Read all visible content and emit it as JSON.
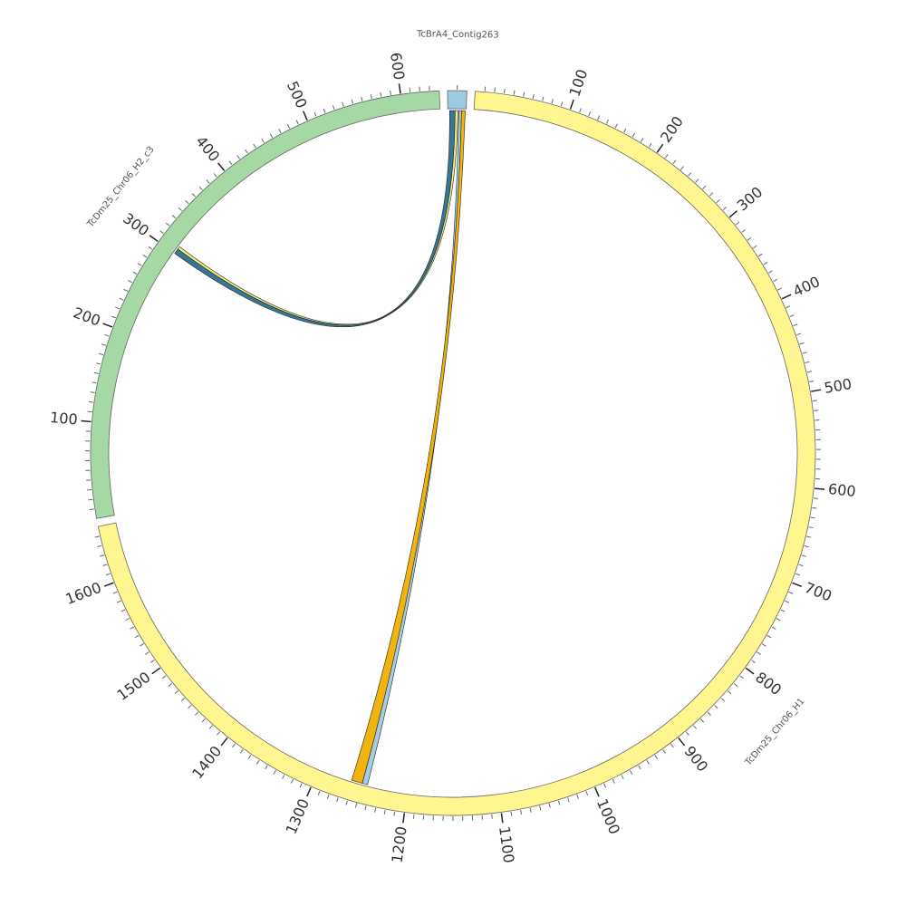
{
  "chart_data": {
    "type": "chord",
    "segments": [
      {
        "name": "TcDm25_Chr06_H1",
        "length": 1660,
        "color": "#fff68f",
        "ticks": [
          100,
          200,
          300,
          400,
          500,
          600,
          700,
          800,
          900,
          1000,
          1100,
          1200,
          1300,
          1400,
          1500,
          1600
        ]
      },
      {
        "name": "TcDm25_Chr06_H2_c3",
        "length": 640,
        "color": "#a6d8a6",
        "ticks": [
          100,
          200,
          300,
          400,
          500,
          600
        ]
      },
      {
        "name": "TcBrA4_Contig263",
        "length": 20,
        "color": "#9ecae1",
        "ticks": []
      }
    ],
    "minor_tick_interval": 10,
    "links": [
      {
        "source": "TcBrA4_Contig263",
        "source_start": 2,
        "source_end": 8,
        "target": "TcDm25_Chr06_H2_c3",
        "target_start": 300,
        "target_end": 306,
        "color": "#2e6e8e"
      },
      {
        "source": "TcBrA4_Contig263",
        "source_start": 8,
        "source_end": 11,
        "target": "TcDm25_Chr06_H2_c3",
        "target_start": 306,
        "target_end": 309,
        "color": "#f3ee7a"
      },
      {
        "source": "TcBrA4_Contig263",
        "source_start": 12,
        "source_end": 15,
        "target": "TcDm25_Chr06_H1",
        "target_start": 1244,
        "target_end": 1250,
        "color": "#9ecae1"
      },
      {
        "source": "TcBrA4_Contig263",
        "source_start": 15,
        "source_end": 19,
        "target": "TcDm25_Chr06_H1",
        "target_start": 1250,
        "target_end": 1262,
        "color": "#f0b000"
      }
    ]
  }
}
